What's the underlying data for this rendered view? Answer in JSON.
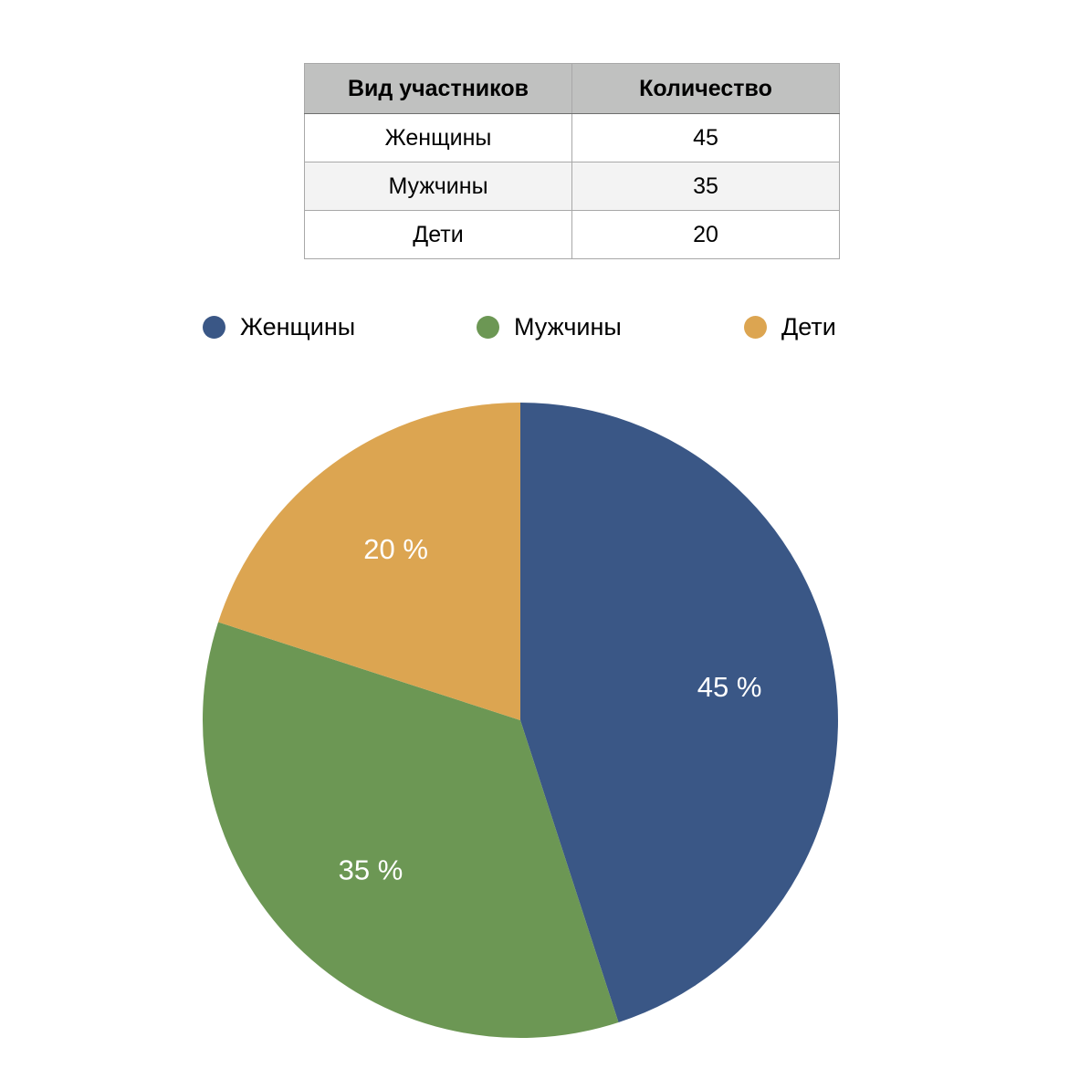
{
  "table": {
    "headers": [
      "Вид участников",
      "Количество"
    ],
    "rows": [
      [
        "Женщины",
        "45"
      ],
      [
        "Мужчины",
        "35"
      ],
      [
        "Дети",
        "20"
      ]
    ]
  },
  "legend": [
    {
      "label": "Женщины",
      "color": "#3a5786"
    },
    {
      "label": "Мужчины",
      "color": "#6c9754"
    },
    {
      "label": "Дети",
      "color": "#dca551"
    }
  ],
  "chart_data": {
    "type": "pie",
    "categories": [
      "Женщины",
      "Мужчины",
      "Дети"
    ],
    "values": [
      45,
      35,
      20
    ],
    "data_labels": [
      "45 %",
      "35 %",
      "20 %"
    ],
    "colors": [
      "#3a5786",
      "#6c9754",
      "#dca551"
    ],
    "start_angle_deg": 0,
    "direction": "clockwise",
    "legend_position": "top"
  }
}
